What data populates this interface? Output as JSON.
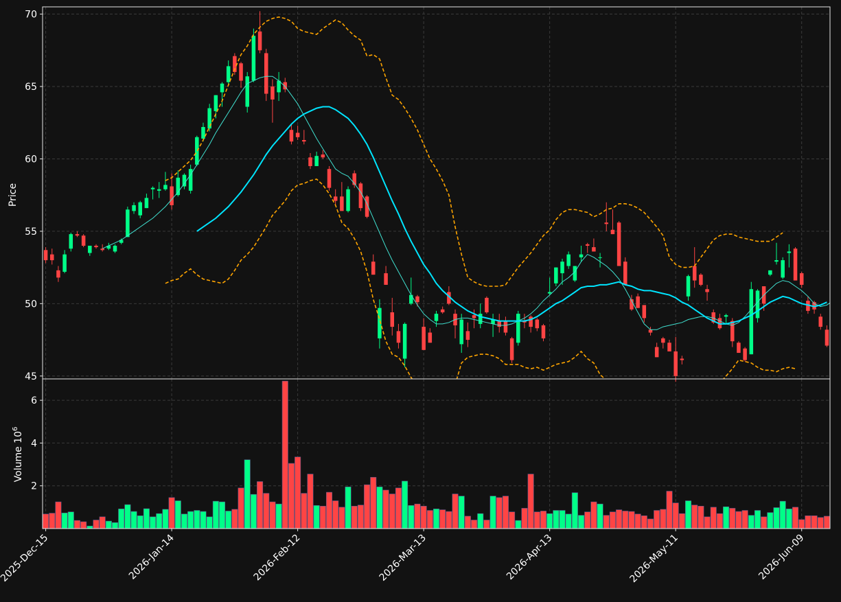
{
  "chart_data": {
    "type": "candlestick",
    "price_panel": {
      "ylabel": "Price",
      "ylim": [
        44.8,
        70.5
      ],
      "yticks": [
        45,
        50,
        55,
        60,
        65,
        70
      ],
      "xlim": [
        -0.5,
        124.5
      ],
      "grid": true
    },
    "volume_panel": {
      "ylabel": "Volume  10",
      "ylabel_exponent": "6",
      "ylim": [
        0,
        7.0
      ],
      "yticks": [
        2,
        4,
        6
      ],
      "grid": true
    },
    "x_ticks": [
      {
        "i": 0,
        "label": "2025-Dec-15"
      },
      {
        "i": 20,
        "label": "2026-Jan-14"
      },
      {
        "i": 40,
        "label": "2026-Feb-12"
      },
      {
        "i": 60,
        "label": "2026-Mar-13"
      },
      {
        "i": 80,
        "label": "2026-Apr-13"
      },
      {
        "i": 100,
        "label": "2026-May-11"
      },
      {
        "i": 120,
        "label": "2026-Jun-09"
      }
    ],
    "candles_ohlcv": [
      [
        53.7,
        53.9,
        52.8,
        53.0,
        0.68
      ],
      [
        53.4,
        53.8,
        52.7,
        53.0,
        0.72
      ],
      [
        52.3,
        52.6,
        51.5,
        51.8,
        1.25
      ],
      [
        52.2,
        53.7,
        52.1,
        53.4,
        0.73
      ],
      [
        53.8,
        54.9,
        53.6,
        54.8,
        0.78
      ],
      [
        54.8,
        55.0,
        54.6,
        54.7,
        0.38
      ],
      [
        54.7,
        54.8,
        53.9,
        54.0,
        0.32
      ],
      [
        53.5,
        54.0,
        53.3,
        54.0,
        0.12
      ],
      [
        54.0,
        54.1,
        53.8,
        53.9,
        0.4
      ],
      [
        53.8,
        54.1,
        53.6,
        53.7,
        0.55
      ],
      [
        53.8,
        54.2,
        53.7,
        54.0,
        0.35
      ],
      [
        53.6,
        54.1,
        53.5,
        54.0,
        0.28
      ],
      [
        54.2,
        54.5,
        54.1,
        54.4,
        0.92
      ],
      [
        54.6,
        56.7,
        54.6,
        56.5,
        1.12
      ],
      [
        56.4,
        57.0,
        56.2,
        56.8,
        0.8
      ],
      [
        56.1,
        57.1,
        55.9,
        57.0,
        0.6
      ],
      [
        56.6,
        57.6,
        56.6,
        57.3,
        0.93
      ],
      [
        57.9,
        58.1,
        57.2,
        58.0,
        0.55
      ],
      [
        57.8,
        58.4,
        57.3,
        57.9,
        0.7
      ],
      [
        57.9,
        59.1,
        57.8,
        58.2,
        0.9
      ],
      [
        58.1,
        59.0,
        56.5,
        56.8,
        1.45
      ],
      [
        57.5,
        59.2,
        57.4,
        58.7,
        1.3
      ],
      [
        58.1,
        59.0,
        57.9,
        58.9,
        0.68
      ],
      [
        57.8,
        59.6,
        57.6,
        59.3,
        0.8
      ],
      [
        59.6,
        61.6,
        59.5,
        61.5,
        0.85
      ],
      [
        61.4,
        62.5,
        61.2,
        62.2,
        0.8
      ],
      [
        62.1,
        63.8,
        61.9,
        63.5,
        0.55
      ],
      [
        63.3,
        64.4,
        62.8,
        64.4,
        1.28
      ],
      [
        64.6,
        65.3,
        63.6,
        65.2,
        1.25
      ],
      [
        65.3,
        66.8,
        65.1,
        66.4,
        0.82
      ],
      [
        67.1,
        67.3,
        65.8,
        66.0,
        0.9
      ],
      [
        66.6,
        66.7,
        64.9,
        65.4,
        1.9
      ],
      [
        63.6,
        66.0,
        63.2,
        65.7,
        3.22
      ],
      [
        65.4,
        69.0,
        65.3,
        68.5,
        1.6
      ],
      [
        68.8,
        70.2,
        67.3,
        67.5,
        2.2
      ],
      [
        67.3,
        67.6,
        64.0,
        64.5,
        1.65
      ],
      [
        65.0,
        65.5,
        62.5,
        64.1,
        1.25
      ],
      [
        64.6,
        66.0,
        64.0,
        65.4,
        1.15
      ],
      [
        65.3,
        65.6,
        64.6,
        64.8,
        6.9
      ],
      [
        62.0,
        62.4,
        61.0,
        61.2,
        3.05
      ],
      [
        61.8,
        62.3,
        61.3,
        61.5,
        3.35
      ],
      [
        61.3,
        62.0,
        61.0,
        61.2,
        1.65
      ],
      [
        60.1,
        60.4,
        59.3,
        59.5,
        2.55
      ],
      [
        59.5,
        60.5,
        59.5,
        60.2,
        1.08
      ],
      [
        60.3,
        60.6,
        60.0,
        60.1,
        1.05
      ],
      [
        59.3,
        59.5,
        57.8,
        58.0,
        1.7
      ],
      [
        57.4,
        57.9,
        56.8,
        57.1,
        1.3
      ],
      [
        57.4,
        58.4,
        56.6,
        56.4,
        1.0
      ],
      [
        56.4,
        58.1,
        56.3,
        57.9,
        1.95
      ],
      [
        59.0,
        59.2,
        58.0,
        58.2,
        1.05
      ],
      [
        58.3,
        58.4,
        56.4,
        56.6,
        1.1
      ],
      [
        57.4,
        57.5,
        55.9,
        56.0,
        2.05
      ],
      [
        52.9,
        53.4,
        52.0,
        52.0,
        2.4
      ],
      [
        47.6,
        50.3,
        46.9,
        49.7,
        1.95
      ],
      [
        52.1,
        52.6,
        51.3,
        51.3,
        1.8
      ],
      [
        49.4,
        50.4,
        47.8,
        48.4,
        1.62
      ],
      [
        48.1,
        48.6,
        46.9,
        47.3,
        1.9
      ],
      [
        46.2,
        48.7,
        45.6,
        48.6,
        2.22
      ],
      [
        50.0,
        51.8,
        49.9,
        50.6,
        1.08
      ],
      [
        50.5,
        50.6,
        49.8,
        50.1,
        1.15
      ],
      [
        48.4,
        49.0,
        46.8,
        46.8,
        1.05
      ],
      [
        48.0,
        48.3,
        47.3,
        47.3,
        0.85
      ],
      [
        48.8,
        49.5,
        48.4,
        49.3,
        0.92
      ],
      [
        49.6,
        49.8,
        49.3,
        49.4,
        0.88
      ],
      [
        50.8,
        51.2,
        49.9,
        50.0,
        0.8
      ],
      [
        49.3,
        49.6,
        47.6,
        48.5,
        1.62
      ],
      [
        47.2,
        49.3,
        46.6,
        48.9,
        1.52
      ],
      [
        48.1,
        48.7,
        47.0,
        47.5,
        0.58
      ],
      [
        49.2,
        49.6,
        48.3,
        49.0,
        0.4
      ],
      [
        48.6,
        50.0,
        48.3,
        49.3,
        0.7
      ],
      [
        50.4,
        50.5,
        49.3,
        49.4,
        0.4
      ],
      [
        48.6,
        49.3,
        47.7,
        48.9,
        1.52
      ],
      [
        48.8,
        49.3,
        48.0,
        48.4,
        1.45
      ],
      [
        48.8,
        49.1,
        47.8,
        48.0,
        1.52
      ],
      [
        47.6,
        47.7,
        45.9,
        46.1,
        0.78
      ],
      [
        47.3,
        49.5,
        47.1,
        49.3,
        0.38
      ],
      [
        48.8,
        49.3,
        48.3,
        48.7,
        0.95
      ],
      [
        49.1,
        49.2,
        48.0,
        48.4,
        2.55
      ],
      [
        48.9,
        49.0,
        48.1,
        48.3,
        0.78
      ],
      [
        48.5,
        48.6,
        47.4,
        47.6,
        0.82
      ],
      [
        50.7,
        51.8,
        50.6,
        50.8,
        0.7
      ],
      [
        51.4,
        52.5,
        51.2,
        52.5,
        0.85
      ],
      [
        52.1,
        53.1,
        51.3,
        52.9,
        0.85
      ],
      [
        52.6,
        53.6,
        52.4,
        53.4,
        0.68
      ],
      [
        51.6,
        52.3,
        51.5,
        52.6,
        1.68
      ],
      [
        53.2,
        54.0,
        52.9,
        53.4,
        0.62
      ],
      [
        54.1,
        54.2,
        53.5,
        54.0,
        0.78
      ],
      [
        53.9,
        54.5,
        53.6,
        53.6,
        1.25
      ],
      [
        53.2,
        53.5,
        52.5,
        53.2,
        1.15
      ],
      [
        55.6,
        57.0,
        55.0,
        55.5,
        0.62
      ],
      [
        55.1,
        56.5,
        54.8,
        54.8,
        0.78
      ],
      [
        55.6,
        55.7,
        52.6,
        52.6,
        0.88
      ],
      [
        52.9,
        53.2,
        51.3,
        51.3,
        0.82
      ],
      [
        50.3,
        50.6,
        49.5,
        49.6,
        0.8
      ],
      [
        50.5,
        50.7,
        49.7,
        49.7,
        0.68
      ],
      [
        49.9,
        49.9,
        48.7,
        49.0,
        0.6
      ],
      [
        48.2,
        48.4,
        47.8,
        48.0,
        0.45
      ],
      [
        47.0,
        47.3,
        46.3,
        46.3,
        0.85
      ],
      [
        47.6,
        47.7,
        46.9,
        47.3,
        0.9
      ],
      [
        47.3,
        47.5,
        46.9,
        46.7,
        1.75
      ],
      [
        46.7,
        47.7,
        44.6,
        45.0,
        1.2
      ],
      [
        46.2,
        46.4,
        45.8,
        46.1,
        0.7
      ],
      [
        50.5,
        52.0,
        50.2,
        51.9,
        1.3
      ],
      [
        52.6,
        53.9,
        51.1,
        51.6,
        1.1
      ],
      [
        52.0,
        52.1,
        51.2,
        51.3,
        1.05
      ],
      [
        51.0,
        51.3,
        50.2,
        50.8,
        0.55
      ],
      [
        49.4,
        49.6,
        48.6,
        48.7,
        1.0
      ],
      [
        49.0,
        49.3,
        48.2,
        48.3,
        0.7
      ],
      [
        49.1,
        49.3,
        48.6,
        49.2,
        1.02
      ],
      [
        48.8,
        49.0,
        47.0,
        47.4,
        0.95
      ],
      [
        47.3,
        47.4,
        46.6,
        46.6,
        0.8
      ],
      [
        46.9,
        47.0,
        46.0,
        46.1,
        0.85
      ],
      [
        46.5,
        51.5,
        46.5,
        51.0,
        0.62
      ],
      [
        49.0,
        51.0,
        48.7,
        50.9,
        0.85
      ],
      [
        51.2,
        51.2,
        49.5,
        50.0,
        0.55
      ],
      [
        52.0,
        52.3,
        51.9,
        52.3,
        0.75
      ],
      [
        52.9,
        54.2,
        52.7,
        53.0,
        0.98
      ],
      [
        51.8,
        53.2,
        51.7,
        53.0,
        1.28
      ],
      [
        53.5,
        54.1,
        52.5,
        53.6,
        0.92
      ],
      [
        53.8,
        53.9,
        51.6,
        51.6,
        1.0
      ],
      [
        52.1,
        52.2,
        51.1,
        51.3,
        0.42
      ],
      [
        50.2,
        50.5,
        49.3,
        49.5,
        0.6
      ],
      [
        50.1,
        50.2,
        49.3,
        49.6,
        0.6
      ],
      [
        49.1,
        49.3,
        48.2,
        48.4,
        0.52
      ],
      [
        48.2,
        48.5,
        47.0,
        47.1,
        0.58
      ]
    ],
    "overlays": [
      {
        "name": "",
        "kind": "ma_fast",
        "color": "#40e0d0",
        "start": 9,
        "values": [
          53.8,
          54.0,
          54.2,
          54.4,
          54.7,
          55.0,
          55.3,
          55.6,
          55.9,
          56.3,
          56.7,
          57.2,
          57.7,
          58.3,
          58.9,
          59.6,
          60.3,
          61.0,
          61.8,
          62.5,
          63.2,
          63.9,
          64.6,
          65.2,
          65.4,
          65.6,
          65.7,
          65.7,
          65.4,
          65.0,
          64.4,
          63.8,
          63.0,
          62.2,
          61.4,
          60.7,
          60.0,
          59.3,
          59.0,
          58.8,
          58.3,
          57.7,
          56.9,
          55.9,
          54.9,
          53.9,
          53.0,
          52.2,
          51.4,
          50.6,
          49.9,
          49.3,
          48.9,
          48.6,
          48.6,
          48.7,
          48.9,
          49.0,
          49.0,
          48.9,
          48.8,
          48.7,
          48.6,
          48.5,
          48.5,
          48.6,
          48.8,
          49.0,
          49.3,
          49.7,
          50.2,
          50.6,
          51.0,
          51.5,
          51.8,
          52.2,
          52.9,
          53.4,
          53.2,
          52.9,
          52.6,
          52.2,
          51.7,
          51.0,
          50.2,
          49.4,
          48.6,
          48.2,
          48.2,
          48.4,
          48.5,
          48.6,
          48.7,
          48.9,
          49.0,
          49.1,
          49.1,
          49.0,
          48.8,
          48.6,
          48.5,
          48.7,
          49.1,
          49.6,
          50.1,
          50.6,
          51.0,
          51.4,
          51.6,
          51.5,
          51.2,
          50.9,
          50.5,
          50.0,
          49.8,
          49.9,
          50.2
        ]
      },
      {
        "name": "",
        "kind": "ma_slow",
        "color": "#00e5ff",
        "start": 24,
        "values": [
          55.0,
          55.3,
          55.6,
          55.9,
          56.3,
          56.7,
          57.2,
          57.7,
          58.3,
          58.9,
          59.6,
          60.3,
          60.9,
          61.4,
          61.9,
          62.4,
          62.8,
          63.1,
          63.3,
          63.5,
          63.6,
          63.6,
          63.4,
          63.1,
          62.8,
          62.3,
          61.7,
          61.0,
          60.1,
          59.1,
          58.1,
          57.1,
          56.2,
          55.2,
          54.3,
          53.5,
          52.7,
          52.1,
          51.4,
          50.9,
          50.5,
          50.1,
          49.8,
          49.5,
          49.3,
          49.1,
          49.0,
          48.9,
          48.8,
          48.8,
          48.8,
          48.8,
          48.8,
          48.9,
          49.1,
          49.4,
          49.7,
          50.0,
          50.2,
          50.5,
          50.8,
          51.1,
          51.2,
          51.2,
          51.3,
          51.3,
          51.4,
          51.5,
          51.3,
          51.2,
          51.0,
          50.9,
          50.9,
          50.8,
          50.7,
          50.6,
          50.4,
          50.1,
          49.9,
          49.6,
          49.3,
          49.0,
          48.8,
          48.6,
          48.6,
          48.7,
          48.8,
          49.0,
          49.2,
          49.5,
          49.8,
          50.1,
          50.3,
          50.5,
          50.4,
          50.2,
          50.0,
          49.9,
          49.8,
          49.9,
          50.1
        ]
      },
      {
        "name": "",
        "kind": "band_upper",
        "color": "#ffa500",
        "start": 19,
        "values": [
          58.5,
          58.7,
          59.1,
          59.5,
          59.9,
          60.5,
          61.3,
          62.2,
          63.1,
          64.0,
          65.1,
          66.2,
          67.2,
          67.8,
          68.6,
          69.1,
          69.5,
          69.7,
          69.8,
          69.7,
          69.5,
          69.0,
          68.8,
          68.7,
          68.6,
          69.0,
          69.3,
          69.6,
          69.4,
          68.9,
          68.5,
          68.2,
          67.1,
          67.2,
          66.9,
          65.6,
          64.4,
          64.1,
          63.5,
          62.8,
          62.0,
          61.0,
          60.0,
          59.3,
          58.5,
          57.5,
          55.3,
          53.4,
          51.8,
          51.5,
          51.3,
          51.2,
          51.2,
          51.2,
          51.3,
          51.9,
          52.5,
          53.0,
          53.5,
          54.1,
          54.7,
          55.1,
          55.8,
          56.3,
          56.5,
          56.5,
          56.4,
          56.3,
          56.0,
          56.2,
          56.5,
          56.6,
          56.9,
          56.9,
          56.8,
          56.6,
          56.3,
          55.8,
          55.3,
          54.7,
          53.2,
          52.7,
          52.5,
          52.5,
          52.6,
          53.2,
          53.8,
          54.4,
          54.7,
          54.8,
          54.8,
          54.6,
          54.5,
          54.4,
          54.3,
          54.3,
          54.3,
          54.6,
          54.9
        ]
      },
      {
        "name": "",
        "kind": "band_lower",
        "color": "#ffa500",
        "start": 19,
        "values": [
          51.4,
          51.6,
          51.7,
          52.1,
          52.4,
          52.0,
          51.7,
          51.6,
          51.5,
          51.4,
          51.7,
          52.3,
          53.0,
          53.4,
          53.9,
          54.6,
          55.3,
          56.1,
          56.6,
          57.1,
          57.8,
          58.2,
          58.3,
          58.5,
          58.6,
          58.2,
          57.6,
          56.8,
          55.6,
          55.2,
          54.5,
          53.6,
          52.2,
          50.3,
          48.9,
          47.4,
          46.5,
          46.3,
          45.7,
          44.9,
          44.3,
          43.8,
          43.4,
          43.4,
          43.5,
          43.8,
          44.4,
          45.9,
          46.3,
          46.4,
          46.5,
          46.5,
          46.4,
          46.2,
          45.8,
          45.8,
          45.8,
          45.6,
          45.5,
          45.6,
          45.4,
          45.6,
          45.8,
          45.9,
          46.0,
          46.3,
          46.7,
          46.2,
          45.9,
          45.1,
          44.7,
          44.6,
          44.5,
          44.5,
          44.5,
          44.4,
          44.4,
          44.4,
          44.5,
          44.6,
          44.7,
          44.6,
          44.6,
          44.6,
          44.5,
          44.5,
          44.4,
          44.4,
          44.5,
          45.0,
          45.5,
          46.1,
          46.0,
          45.9,
          45.6,
          45.4,
          45.4,
          45.3,
          45.5,
          45.6,
          45.5
        ]
      }
    ]
  }
}
